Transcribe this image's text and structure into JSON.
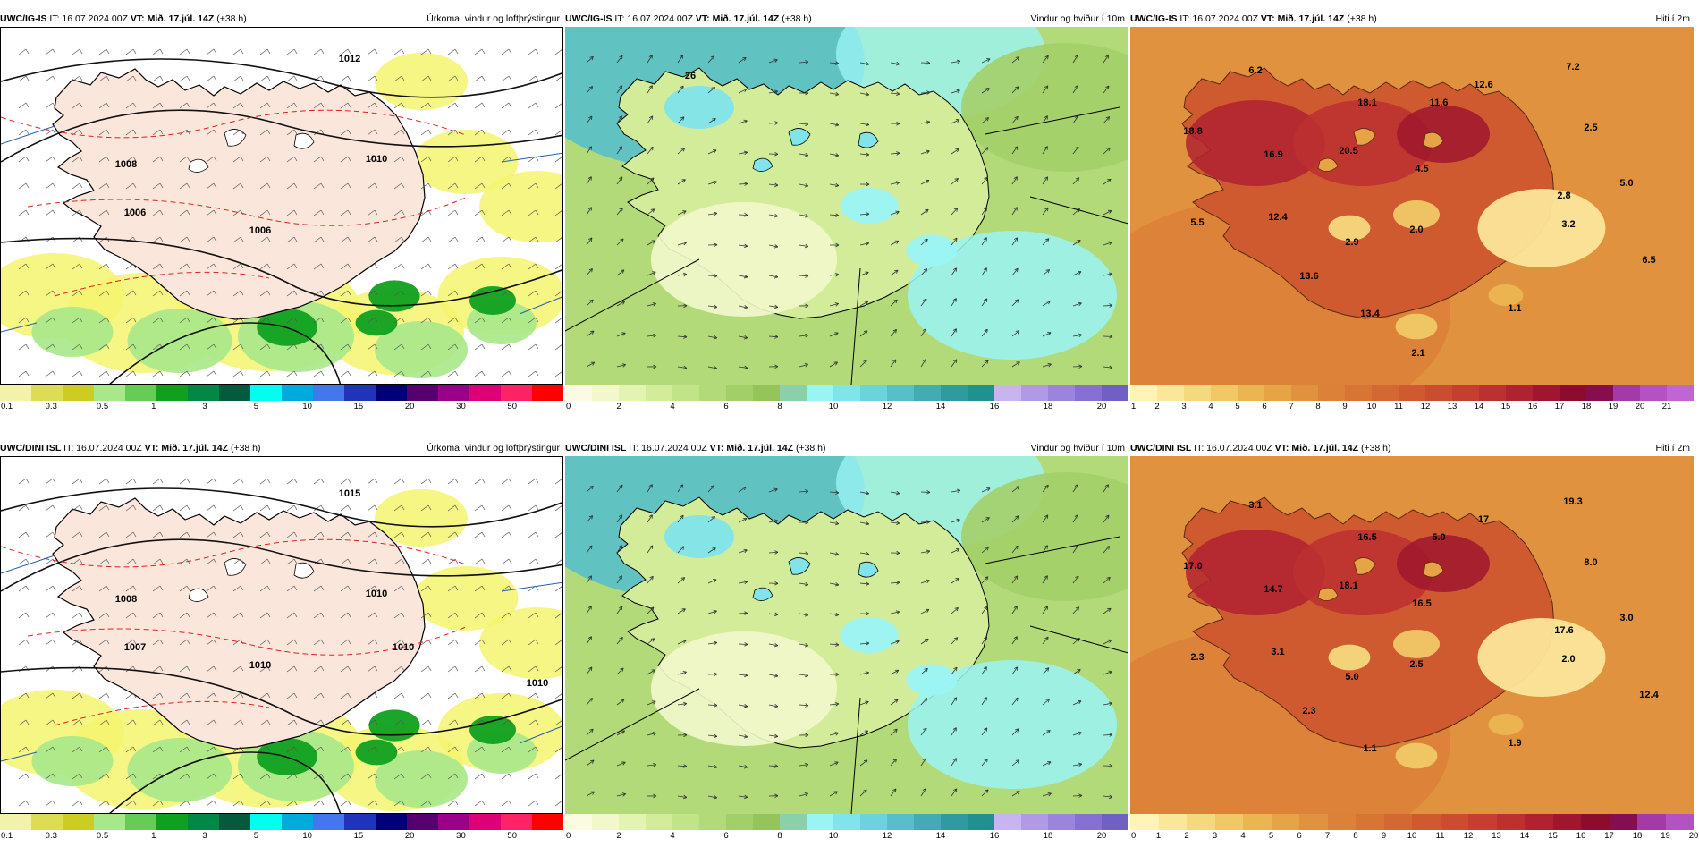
{
  "panels": [
    {
      "id": "p1",
      "model": "UWC/IG-IS",
      "it": "IT: 16.07.2024 00Z",
      "vt": "VT: Mið. 17.júl. 14Z",
      "lead": "(+38 h)",
      "title": "Úrkoma, vindur og loftþrýstingur",
      "kind": "precip",
      "bar": [
        "#f2f2aa",
        "#dddd55",
        "#cccc22",
        "#a8e88a",
        "#66cc55",
        "#10a020",
        "#008844",
        "#045a3c",
        "#00ffee",
        "#00aadd",
        "#4477ee",
        "#2233bb",
        "#000077",
        "#55006e",
        "#9b0088",
        "#dd0077",
        "#ff2266",
        "#ff0000"
      ],
      "ticks": [
        "0.1",
        "0.3",
        "0.5",
        "1",
        "3",
        "5",
        "10",
        "15",
        "20",
        "30",
        "50"
      ],
      "labels": [
        {
          "t": "1006"
        },
        {
          "t": "1010"
        },
        {
          "t": "1012"
        },
        {
          "t": "1008"
        },
        {
          "t": "1006"
        }
      ]
    },
    {
      "id": "p2",
      "model": "UWC/IG-IS",
      "it": "IT: 16.07.2024 00Z",
      "vt": "VT: Mið. 17.júl. 14Z",
      "lead": "(+38 h)",
      "title": "Vindur og hviður í 10m",
      "kind": "wind",
      "bar": [
        "#fbfbe2",
        "#f2f8cc",
        "#e3f3b2",
        "#d2ec9a",
        "#c2e488",
        "#b2da78",
        "#a3cf68",
        "#94c45a",
        "#8ad0a8",
        "#9af4f4",
        "#80e4ea",
        "#6cd2dc",
        "#58bfca",
        "#44aab4",
        "#2f9aa0",
        "#209090",
        "#c8b4f0",
        "#b09ae6",
        "#9a84dc",
        "#8670d2",
        "#7060c4"
      ],
      "ticks": [
        "0",
        "2",
        "4",
        "6",
        "8",
        "10",
        "12",
        "14",
        "16",
        "18",
        "20"
      ],
      "labels": [
        {
          "t": "26"
        }
      ]
    },
    {
      "id": "p3",
      "model": "UWC/IG-IS",
      "it": "IT: 16.07.2024 00Z",
      "vt": "VT: Mið. 17.júl. 14Z",
      "lead": "(+38 h)",
      "title": "Hiti í 2m",
      "kind": "temp",
      "bar": [
        "#fff3b8",
        "#fbe69a",
        "#f5d97e",
        "#f0c866",
        "#ebb652",
        "#e6a446",
        "#e1923e",
        "#dc8238",
        "#d87434",
        "#d46832",
        "#d05a30",
        "#cc4c30",
        "#c63e30",
        "#bc3030",
        "#b02230",
        "#a0162e",
        "#8c0c2c",
        "#860e50",
        "#a43aa8",
        "#b452c4",
        "#c066d4"
      ],
      "ticks": [
        "1",
        "2",
        "3",
        "4",
        "5",
        "6",
        "7",
        "8",
        "9",
        "10",
        "11",
        "12",
        "13",
        "14",
        "15",
        "16",
        "17",
        "18",
        "19",
        "20",
        "21"
      ],
      "labels": [
        {
          "t": "6.2"
        },
        {
          "t": "18.1"
        },
        {
          "t": "11.6"
        },
        {
          "t": "12.6"
        },
        {
          "t": "7.2"
        },
        {
          "t": "18.8"
        },
        {
          "t": "16.9"
        },
        {
          "t": "20.5"
        },
        {
          "t": "4.5"
        },
        {
          "t": "2.5"
        },
        {
          "t": "2.8"
        },
        {
          "t": "5.0"
        },
        {
          "t": "5.5"
        },
        {
          "t": "12.4"
        },
        {
          "t": "2.9"
        },
        {
          "t": "2.0"
        },
        {
          "t": "3.2"
        },
        {
          "t": "6.5"
        },
        {
          "t": "13.6"
        },
        {
          "t": "13.4"
        },
        {
          "t": "1.1"
        },
        {
          "t": "2.1"
        }
      ]
    },
    {
      "id": "p4",
      "model": "UWC/DINI ISL",
      "it": "IT: 16.07.2024 00Z",
      "vt": "VT: Mið. 17.júl. 14Z",
      "lead": "(+38 h)",
      "title": "Úrkoma, vindur og loftþrýstingur",
      "kind": "precip",
      "bar": [
        "#f2f2aa",
        "#dddd55",
        "#cccc22",
        "#a8e88a",
        "#66cc55",
        "#10a020",
        "#008844",
        "#045a3c",
        "#00ffee",
        "#00aadd",
        "#4477ee",
        "#2233bb",
        "#000077",
        "#55006e",
        "#9b0088",
        "#dd0077",
        "#ff2266",
        "#ff0000"
      ],
      "ticks": [
        "0.1",
        "0.3",
        "0.5",
        "1",
        "3",
        "5",
        "10",
        "15",
        "20",
        "30",
        "50"
      ],
      "labels": [
        {
          "t": "1010"
        },
        {
          "t": "1010"
        },
        {
          "t": "1015"
        },
        {
          "t": "1008"
        },
        {
          "t": "1007"
        },
        {
          "t": "1010"
        },
        {
          "t": "1010"
        }
      ]
    },
    {
      "id": "p5",
      "model": "UWC/DINI ISL",
      "it": "IT: 16.07.2024 00Z",
      "vt": "VT: Mið. 17.júl. 14Z",
      "lead": "(+38 h)",
      "title": "Vindur og hviður í 10m",
      "kind": "wind",
      "bar": [
        "#fbfbe2",
        "#f2f8cc",
        "#e3f3b2",
        "#d2ec9a",
        "#c2e488",
        "#b2da78",
        "#a3cf68",
        "#94c45a",
        "#8ad0a8",
        "#9af4f4",
        "#80e4ea",
        "#6cd2dc",
        "#58bfca",
        "#44aab4",
        "#2f9aa0",
        "#209090",
        "#c8b4f0",
        "#b09ae6",
        "#9a84dc",
        "#8670d2",
        "#7060c4"
      ],
      "ticks": [
        "0",
        "2",
        "4",
        "6",
        "8",
        "10",
        "12",
        "14",
        "16",
        "18",
        "20"
      ],
      "labels": []
    },
    {
      "id": "p6",
      "model": "UWC/DINI ISL",
      "it": "IT: 16.07.2024 00Z",
      "vt": "VT: Mið. 17.júl. 14Z",
      "lead": "(+38 h)",
      "title": "Hiti í 2m",
      "kind": "temp",
      "bar": [
        "#fff3b8",
        "#fbe69a",
        "#f5d97e",
        "#f0c866",
        "#ebb652",
        "#e6a446",
        "#e1923e",
        "#dc8238",
        "#d87434",
        "#d46832",
        "#d05a30",
        "#cc4c30",
        "#c63e30",
        "#bc3030",
        "#b02230",
        "#a0162e",
        "#8c0c2c",
        "#860e50",
        "#a43aa8",
        "#b452c4"
      ],
      "ticks": [
        "0",
        "1",
        "2",
        "3",
        "4",
        "5",
        "6",
        "7",
        "8",
        "9",
        "10",
        "11",
        "12",
        "13",
        "14",
        "15",
        "16",
        "17",
        "18",
        "19",
        "20"
      ],
      "labels": [
        {
          "t": "3.1"
        },
        {
          "t": "16.5"
        },
        {
          "t": "5.0"
        },
        {
          "t": "17"
        },
        {
          "t": "19.3"
        },
        {
          "t": "17.0"
        },
        {
          "t": "14.7"
        },
        {
          "t": "18.1"
        },
        {
          "t": "16.5"
        },
        {
          "t": "8.0"
        },
        {
          "t": "17.6"
        },
        {
          "t": "3.0"
        },
        {
          "t": "2.3"
        },
        {
          "t": "3.1"
        },
        {
          "t": "5.0"
        },
        {
          "t": "2.5"
        },
        {
          "t": "2.0"
        },
        {
          "t": "12.4"
        },
        {
          "t": "2.3"
        },
        {
          "t": "1.1"
        },
        {
          "t": "1.9"
        }
      ]
    }
  ]
}
